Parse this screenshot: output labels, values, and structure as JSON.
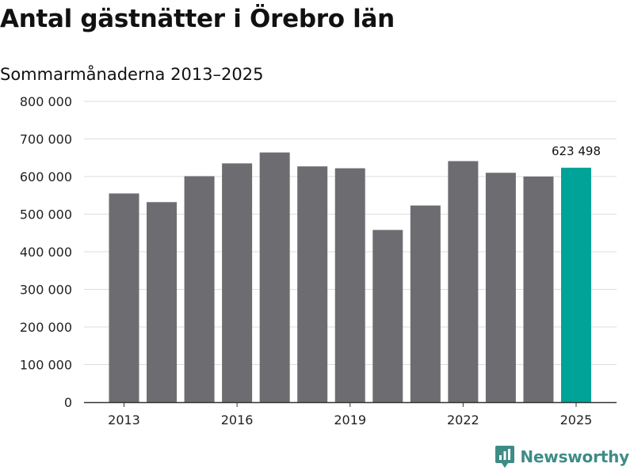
{
  "header": {
    "title": "Antal gästnätter i Örebro län",
    "subtitle": "Sommarmånaderna 2013–2025"
  },
  "brand": {
    "name": "Newsworthy",
    "icon": "newsworthy-logo-icon",
    "color": "#3f8c87"
  },
  "colors": {
    "bar": "#6d6c71",
    "highlight": "#00a398",
    "grid": "#dddddd",
    "axis": "#333333"
  },
  "chart_data": {
    "type": "bar",
    "title": "Antal gästnätter i Örebro län",
    "subtitle": "Sommarmånaderna 2013–2025",
    "xlabel": "",
    "ylabel": "",
    "categories": [
      "2013",
      "2014",
      "2015",
      "2016",
      "2017",
      "2018",
      "2019",
      "2020",
      "2021",
      "2022",
      "2023",
      "2024",
      "2025"
    ],
    "values": [
      555000,
      532000,
      601000,
      635000,
      664000,
      627000,
      622000,
      458000,
      523000,
      641000,
      610000,
      600000,
      623498
    ],
    "highlight_index": 12,
    "x_tick_labels": [
      "2013",
      "2016",
      "2019",
      "2022",
      "2025"
    ],
    "y_ticks": [
      0,
      100000,
      200000,
      300000,
      400000,
      500000,
      600000,
      700000,
      800000
    ],
    "y_tick_labels": [
      "0",
      "100 000",
      "200 000",
      "300 000",
      "400 000",
      "500 000",
      "600 000",
      "700 000",
      "800 000"
    ],
    "ylim": [
      0,
      800000
    ],
    "grid": true,
    "data_labels": [
      {
        "index": 12,
        "text": "623 498"
      }
    ]
  }
}
